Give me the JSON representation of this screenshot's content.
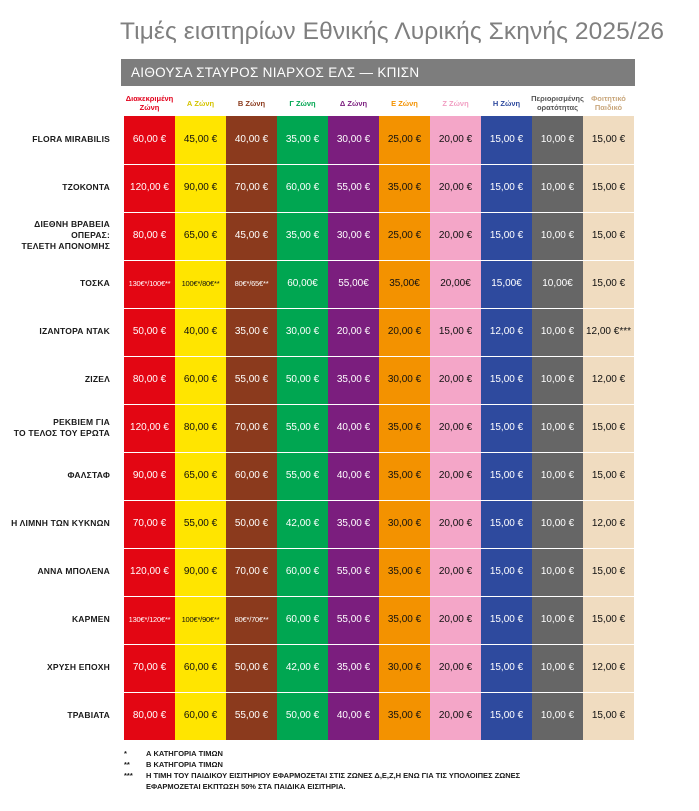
{
  "title": "Τιμές εισιτηρίων Εθνικής Λυρικής Σκηνής 2025/26",
  "hall": "ΑΙΘΟΥΣΑ ΣΤΑΥΡΟΣ ΝΙΑΡΧΟΣ ΕΛΣ — ΚΠΙΣΝ",
  "zones": [
    {
      "label": "Διακεκριμένη Ζώνη",
      "header_color": "#e3001b",
      "bg": "#e30613",
      "text": "light"
    },
    {
      "label": "Α Ζώνη",
      "header_color": "#d4c300",
      "bg": "#ffe500",
      "text": "dark"
    },
    {
      "label": "Β Ζώνη",
      "header_color": "#8b3a1d",
      "bg": "#8b3a1d",
      "text": "light"
    },
    {
      "label": "Γ Ζώνη",
      "header_color": "#00a651",
      "bg": "#00a651",
      "text": "light"
    },
    {
      "label": "Δ Ζώνη",
      "header_color": "#7b1e7e",
      "bg": "#7b1e7e",
      "text": "light"
    },
    {
      "label": "Ε Ζώνη",
      "header_color": "#f39200",
      "bg": "#f39200",
      "text": "dark"
    },
    {
      "label": "Ζ Ζώνη",
      "header_color": "#f19ec2",
      "bg": "#f4a6c8",
      "text": "dark"
    },
    {
      "label": "Η Ζώνη",
      "header_color": "#2e4a9e",
      "bg": "#2e4a9e",
      "text": "light"
    },
    {
      "label": "Περιορισμένης ορατότητας",
      "header_color": "#555555",
      "bg": "#666666",
      "text": "light"
    },
    {
      "label": "Φοιτητικό Παιδικό",
      "header_color": "#c9a77c",
      "bg": "#f0dcc0",
      "text": "dark"
    }
  ],
  "rows": [
    {
      "name": "FLORA MIRABILIS",
      "prices": [
        "60,00 €",
        "45,00 €",
        "40,00 €",
        "35,00 €",
        "30,00 €",
        "25,00 €",
        "20,00 €",
        "15,00 €",
        "10,00 €",
        "15,00 €"
      ]
    },
    {
      "name": "ΤΖΟΚΟΝΤΑ",
      "prices": [
        "120,00 €",
        "90,00 €",
        "70,00 €",
        "60,00 €",
        "55,00 €",
        "35,00 €",
        "20,00 €",
        "15,00 €",
        "10,00 €",
        "15,00 €"
      ]
    },
    {
      "name": "ΔΙΕΘΝΗ ΒΡΑΒΕΙΑ\nΟΠΕΡΑΣ:\nΤΕΛΕΤΗ ΑΠΟΝΟΜΗΣ",
      "prices": [
        "80,00 €",
        "65,00 €",
        "45,00 €",
        "35,00 €",
        "30,00 €",
        "25,00 €",
        "20,00 €",
        "15,00 €",
        "10,00 €",
        "15,00 €"
      ]
    },
    {
      "name": "ΤΟΣΚΑ",
      "prices": [
        "130€*/100€**",
        "100€*/80€**",
        "80€*/65€**",
        "60,00€",
        "55,00€",
        "35,00€",
        "20,00€",
        "15,00€",
        "10,00€",
        "15,00 €"
      ]
    },
    {
      "name": "ΙΖΑΝΤΟΡΑ ΝΤΑΚ",
      "prices": [
        "50,00 €",
        "40,00 €",
        "35,00 €",
        "30,00 €",
        "20,00 €",
        "20,00 €",
        "15,00 €",
        "12,00 €",
        "10,00 €",
        "12,00 €***"
      ]
    },
    {
      "name": "ΖΙΖΕΛ",
      "prices": [
        "80,00 €",
        "60,00 €",
        "55,00 €",
        "50,00 €",
        "35,00 €",
        "30,00 €",
        "20,00 €",
        "15,00 €",
        "10,00 €",
        "12,00 €"
      ]
    },
    {
      "name": "ΡΕΚΒΙΕΜ ΓΙΑ\nΤΟ ΤΕΛΟΣ ΤΟΥ ΕΡΩΤΑ",
      "prices": [
        "120,00 €",
        "80,00 €",
        "70,00 €",
        "55,00 €",
        "40,00 €",
        "35,00 €",
        "20,00 €",
        "15,00 €",
        "10,00 €",
        "15,00 €"
      ]
    },
    {
      "name": "ΦΑΛΣΤΑΦ",
      "prices": [
        "90,00 €",
        "65,00 €",
        "60,00 €",
        "55,00 €",
        "40,00 €",
        "35,00 €",
        "20,00 €",
        "15,00 €",
        "10,00 €",
        "15,00 €"
      ]
    },
    {
      "name": "Η ΛΙΜΝΗ ΤΩΝ ΚΥΚΝΩΝ",
      "prices": [
        "70,00 €",
        "55,00 €",
        "50,00 €",
        "42,00 €",
        "35,00 €",
        "30,00 €",
        "20,00 €",
        "15,00 €",
        "10,00 €",
        "12,00 €"
      ]
    },
    {
      "name": "ΑΝΝΑ ΜΠΟΛΕΝΑ",
      "prices": [
        "120,00 €",
        "90,00 €",
        "70,00 €",
        "60,00 €",
        "55,00 €",
        "35,00 €",
        "20,00 €",
        "15,00 €",
        "10,00 €",
        "15,00 €"
      ]
    },
    {
      "name": "ΚΑΡΜΕΝ",
      "prices": [
        "130€*/120€**",
        "100€*/90€**",
        "80€*/70€**",
        "60,00 €",
        "55,00 €",
        "35,00 €",
        "20,00 €",
        "15,00 €",
        "10,00 €",
        "15,00 €"
      ]
    },
    {
      "name": "ΧΡΥΣΗ ΕΠΟΧΗ",
      "prices": [
        "70,00 €",
        "60,00 €",
        "50,00 €",
        "42,00 €",
        "35,00 €",
        "30,00 €",
        "20,00 €",
        "15,00 €",
        "10,00 €",
        "12,00 €"
      ]
    },
    {
      "name": "ΤΡΑΒΙΑΤΑ",
      "prices": [
        "80,00 €",
        "60,00 €",
        "55,00 €",
        "50,00 €",
        "40,00 €",
        "35,00 €",
        "20,00 €",
        "15,00 €",
        "10,00 €",
        "15,00 €"
      ]
    }
  ],
  "footnotes": [
    {
      "mark": "*",
      "text": "Α ΚΑΤΗΓΟΡΙΑ ΤΙΜΩΝ"
    },
    {
      "mark": "**",
      "text": "Β ΚΑΤΗΓΟΡΙΑ ΤΙΜΩΝ"
    },
    {
      "mark": "***",
      "text": "Η ΤΙΜΗ ΤΟΥ ΠΑΙΔΙΚΟΥ ΕΙΣΙΤΗΡΙΟΥ ΕΦΑΡΜΟΖΕΤΑΙ ΣΤΙΣ ΖΩΝΕΣ Δ,Ε,Ζ,Η ΕΝΩ ΓΙΑ ΤΙΣ ΥΠΟΛΟΙΠΕΣ ΖΩΝΕΣ"
    },
    {
      "mark": "",
      "text": "ΕΦΑΡΜΟΖΕΤΑΙ ΕΚΠΤΩΣΗ 50% ΣΤΑ ΠΑΙΔΙΚΑ ΕΙΣΙΤΗΡΙΑ."
    }
  ]
}
